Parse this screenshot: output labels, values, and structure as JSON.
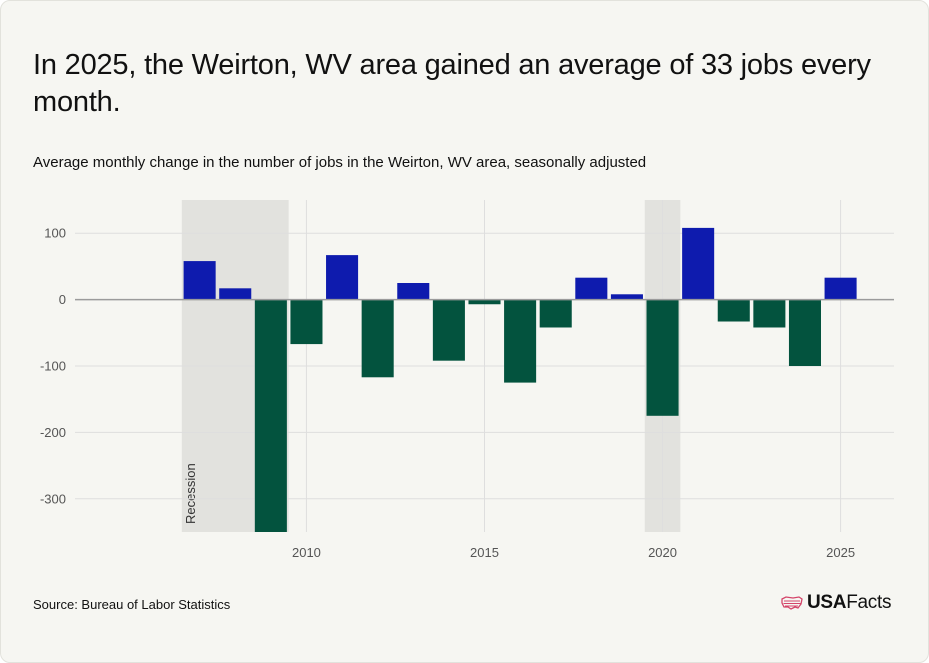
{
  "title": "In 2025, the Weirton, WV area gained an average of 33 jobs every month.",
  "subtitle": "Average monthly change in the number of jobs in the Weirton, WV area, seasonally adjusted",
  "source": "Source: Bureau of Labor Statistics",
  "brand": {
    "prefix": "USA",
    "suffix": "Facts",
    "icon": "us-flag-map-icon"
  },
  "chart_data": {
    "type": "bar",
    "x": [
      2007,
      2008,
      2009,
      2010,
      2011,
      2012,
      2013,
      2014,
      2015,
      2016,
      2017,
      2018,
      2019,
      2020,
      2021,
      2022,
      2023,
      2024,
      2025
    ],
    "values": [
      58,
      17,
      -375,
      -67,
      67,
      -117,
      25,
      -92,
      -7,
      -125,
      -42,
      33,
      8,
      -175,
      108,
      -33,
      -42,
      -100,
      33
    ],
    "xlim": [
      2003.5,
      2026.5
    ],
    "ylim": [
      -350,
      150
    ],
    "xticks": [
      2010,
      2015,
      2020,
      2025
    ],
    "xtick_labels": [
      "2010",
      "2015",
      "2020",
      "2025"
    ],
    "yticks": [
      100,
      0,
      -100,
      -200,
      -300
    ],
    "ytick_labels": [
      "100",
      "0",
      "-100",
      "-200",
      "-300"
    ],
    "recessions": [
      {
        "start": 2006.5,
        "end": 2009.5,
        "label": "Recession"
      },
      {
        "start": 2019.5,
        "end": 2020.5
      }
    ],
    "colors": {
      "positive": "#0e1bae",
      "negative": "#03533e",
      "recession": "#e2e2de",
      "grid": "#dedede",
      "zero_line": "#9b9b9b"
    },
    "grid": true
  }
}
